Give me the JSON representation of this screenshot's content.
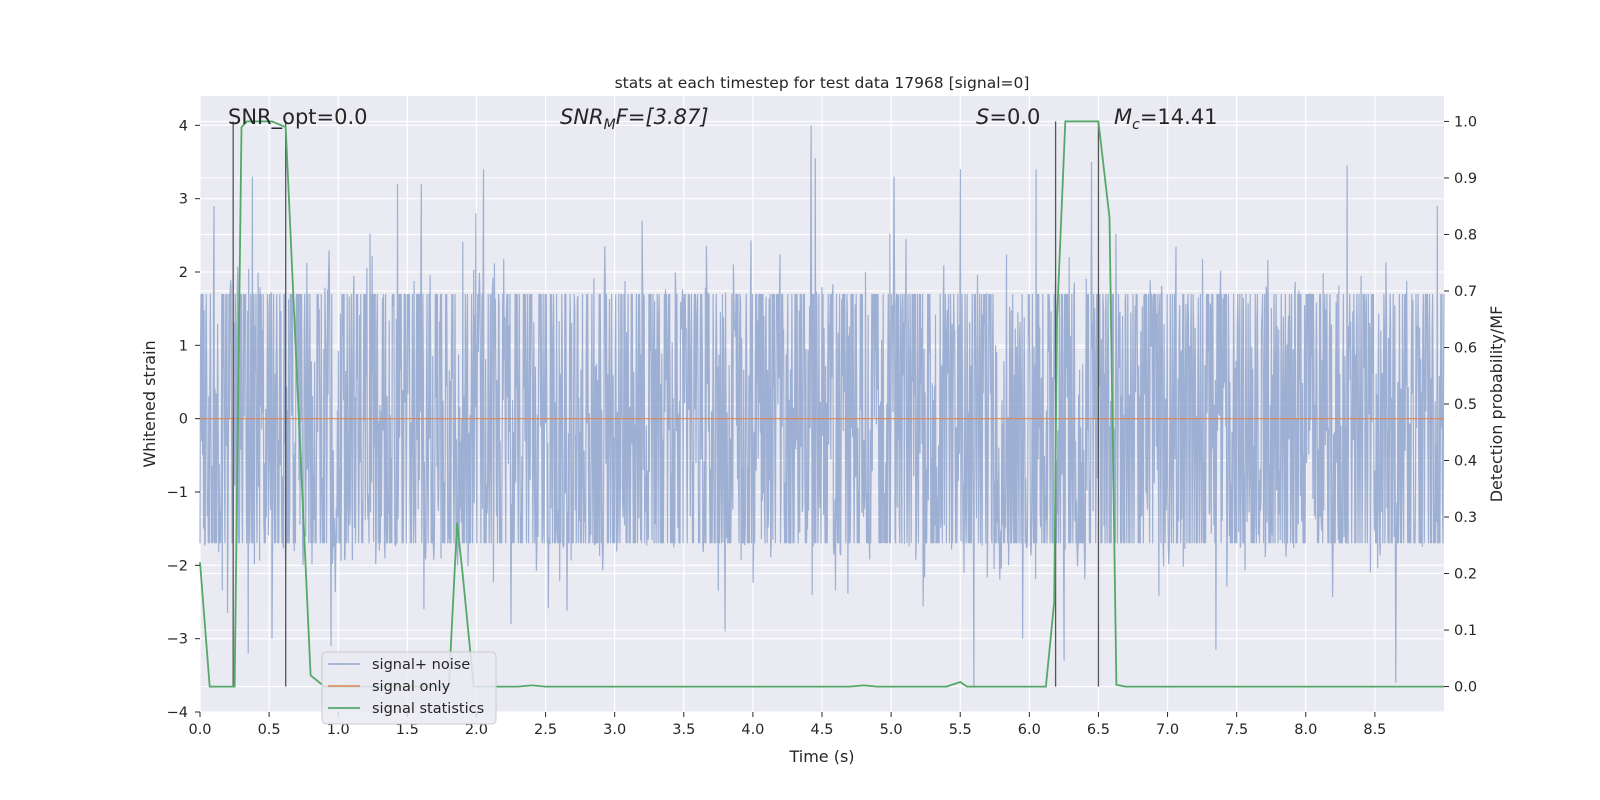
{
  "chart_data": {
    "type": "line",
    "title": "stats at each timestep for test data 17968 [signal=0]",
    "xlabel": "Time (s)",
    "ylabel": "Whitened strain",
    "y2label": "Detection probability/MF",
    "xlim": [
      0,
      9.0
    ],
    "ylim": [
      -4,
      4.4
    ],
    "y2lim": [
      -0.045,
      1.045
    ],
    "x_ticks": [
      "0.0",
      "0.5",
      "1.0",
      "1.5",
      "2.0",
      "2.5",
      "3.0",
      "3.5",
      "4.0",
      "4.5",
      "5.0",
      "5.5",
      "6.0",
      "6.5",
      "7.0",
      "7.5",
      "8.0",
      "8.5"
    ],
    "y_ticks": [
      "4",
      "3",
      "2",
      "1",
      "0",
      "−1",
      "−2",
      "−3",
      "−4"
    ],
    "y2_ticks": [
      "1.0",
      "0.9",
      "0.8",
      "0.7",
      "0.6",
      "0.5",
      "0.4",
      "0.3",
      "0.2",
      "0.1",
      "0.0"
    ],
    "grid": true,
    "legend_position": "lower-left",
    "annotations": {
      "snr_opt": "SNR_opt=0.0",
      "snr_mf_prefix": "SNR",
      "snr_mf_sub": "M",
      "snr_mf_suffix": "F=[3.87]",
      "s_var": "S",
      "s_val": "=0.0",
      "mc_var": "M",
      "mc_sub": "c",
      "mc_val": "=14.41"
    },
    "series": [
      {
        "name": "signal+ noise",
        "color": "#8fa4cc",
        "description_stats": {
          "core_amplitude": 1.7,
          "peak_max": 4.0,
          "peak_min": -3.65
        },
        "notable_peaks": [
          [
            0.1,
            2.9
          ],
          [
            0.38,
            3.3
          ],
          [
            1.43,
            3.2
          ],
          [
            1.6,
            3.2
          ],
          [
            2.05,
            3.4
          ],
          [
            4.42,
            4.0
          ],
          [
            4.45,
            3.55
          ],
          [
            5.02,
            3.3
          ],
          [
            5.5,
            3.4
          ],
          [
            6.05,
            3.4
          ],
          [
            6.45,
            3.5
          ],
          [
            8.3,
            3.45
          ],
          [
            8.95,
            2.9
          ]
        ],
        "notable_troughs": [
          [
            0.2,
            -2.65
          ],
          [
            0.35,
            -3.2
          ],
          [
            0.52,
            -3.0
          ],
          [
            0.95,
            -3.1
          ],
          [
            1.62,
            -2.6
          ],
          [
            2.25,
            -2.8
          ],
          [
            3.8,
            -2.9
          ],
          [
            5.6,
            -3.65
          ],
          [
            5.95,
            -3.0
          ],
          [
            6.25,
            -3.3
          ],
          [
            7.35,
            -3.15
          ],
          [
            8.65,
            -3.6
          ],
          [
            8.95,
            -2.8
          ]
        ]
      },
      {
        "name": "signal only",
        "color": "#dd8452",
        "x": [
          0,
          9.0
        ],
        "y": [
          0,
          0
        ]
      },
      {
        "name": "signal statistics",
        "color": "#55a868",
        "axis": "right",
        "x": [
          0.0,
          0.07,
          0.25,
          0.3,
          0.34,
          0.48,
          0.52,
          0.62,
          0.72,
          0.8,
          0.9,
          1.0,
          1.8,
          1.86,
          1.9,
          1.98,
          2.3,
          2.4,
          2.5,
          4.7,
          4.8,
          4.9,
          5.4,
          5.5,
          5.55,
          5.65,
          6.12,
          6.18,
          6.2,
          6.26,
          6.5,
          6.58,
          6.63,
          6.7,
          9.0
        ],
        "y": [
          0.22,
          0.0,
          0.0,
          0.99,
          1.0,
          1.0,
          1.0,
          0.99,
          0.45,
          0.02,
          0.0,
          0.0,
          0.0,
          0.29,
          0.2,
          0.0,
          0.0,
          0.002,
          0.0,
          0.0,
          0.002,
          0.0,
          0.0,
          0.008,
          0.0,
          0.0,
          0.0,
          0.15,
          0.65,
          1.0,
          1.0,
          0.83,
          0.003,
          0.0,
          0.0
        ]
      }
    ],
    "vlines": [
      0.24,
      0.62,
      6.19,
      6.5
    ]
  }
}
